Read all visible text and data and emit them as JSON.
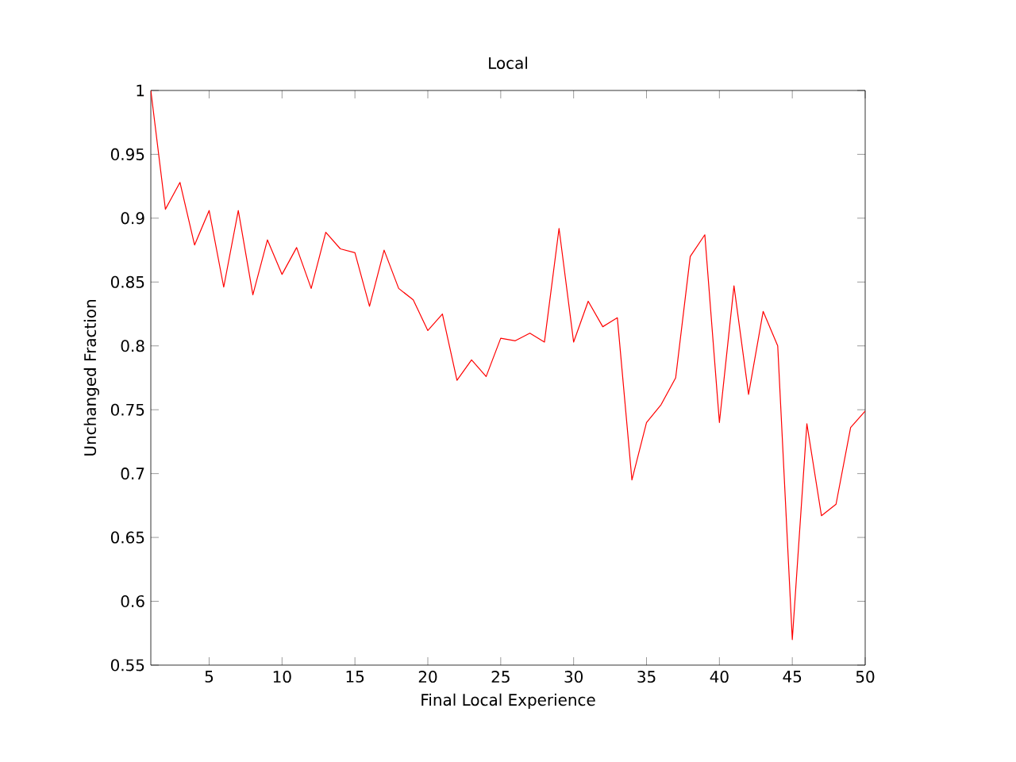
{
  "chart_data": {
    "type": "line",
    "title": "Local",
    "xlabel": "Final Local Experience",
    "ylabel": "Unchanged Fraction",
    "x": [
      1,
      2,
      3,
      4,
      5,
      6,
      7,
      8,
      9,
      10,
      11,
      12,
      13,
      14,
      15,
      16,
      17,
      18,
      19,
      20,
      21,
      22,
      23,
      24,
      25,
      26,
      27,
      28,
      29,
      30,
      31,
      32,
      33,
      34,
      35,
      36,
      37,
      38,
      39,
      40,
      41,
      42,
      43,
      44,
      45,
      46,
      47,
      48,
      49,
      50
    ],
    "series": [
      {
        "color": "#ff0000",
        "values": [
          1.0,
          0.907,
          0.928,
          0.879,
          0.906,
          0.846,
          0.906,
          0.84,
          0.883,
          0.856,
          0.877,
          0.845,
          0.889,
          0.876,
          0.873,
          0.831,
          0.875,
          0.845,
          0.836,
          0.812,
          0.825,
          0.773,
          0.789,
          0.776,
          0.806,
          0.804,
          0.81,
          0.803,
          0.892,
          0.803,
          0.835,
          0.815,
          0.822,
          0.695,
          0.74,
          0.754,
          0.775,
          0.87,
          0.887,
          0.74,
          0.847,
          0.762,
          0.827,
          0.8,
          0.57,
          0.739,
          0.667,
          0.676,
          0.736,
          0.749
        ]
      }
    ],
    "xlim": [
      1,
      50
    ],
    "xticks": [
      5,
      10,
      15,
      20,
      25,
      30,
      35,
      40,
      45,
      50
    ],
    "ylim": [
      0.55,
      1
    ],
    "yticks": [
      0.55,
      0.6,
      0.65,
      0.7,
      0.75,
      0.8,
      0.85,
      0.9,
      0.95,
      1
    ],
    "grid": false,
    "marker": "none",
    "line_style": "solid"
  }
}
